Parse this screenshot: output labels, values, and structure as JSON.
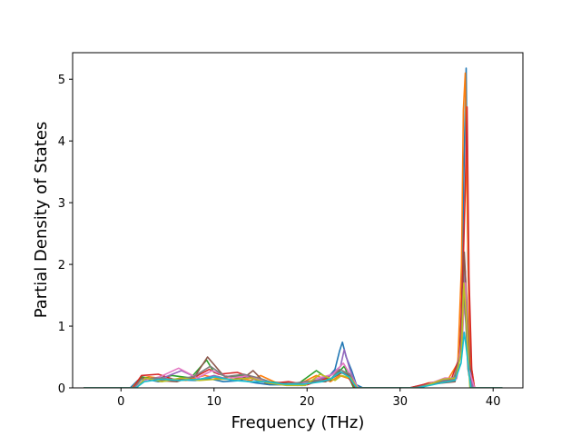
{
  "chart_data": {
    "type": "line",
    "title": "",
    "xlabel": "Frequency (THz)",
    "ylabel": "Partial Density of States",
    "xlim": [
      -5.2,
      43.2
    ],
    "ylim": [
      0,
      5.43
    ],
    "xticks": [
      0,
      10,
      20,
      30,
      40
    ],
    "yticks": [
      0,
      1,
      2,
      3,
      4,
      5
    ],
    "xtick_labels": [
      "0",
      "10",
      "20",
      "30",
      "40"
    ],
    "ytick_labels": [
      "0",
      "1",
      "2",
      "3",
      "4",
      "5"
    ],
    "grid": false,
    "legend": "none",
    "series": [
      {
        "color": "#1f77b4",
        "x": [
          -4,
          1,
          1.8,
          2.5,
          4,
          6,
          8,
          9.5,
          11,
          13,
          14.5,
          16,
          18,
          19.5,
          21,
          22,
          23,
          23.5,
          23.8,
          24.2,
          24.8,
          25.3,
          26,
          31,
          32.5,
          34,
          35.5,
          36.3,
          36.6,
          36.9,
          37.1,
          37.3,
          37.6,
          38,
          41
        ],
        "y": [
          0,
          0,
          0.12,
          0.15,
          0.1,
          0.13,
          0.12,
          0.15,
          0.1,
          0.12,
          0.08,
          0.05,
          0.05,
          0.04,
          0.1,
          0.12,
          0.3,
          0.6,
          0.74,
          0.5,
          0.28,
          0.05,
          0,
          0,
          0.05,
          0.08,
          0.1,
          0.3,
          1.2,
          3.8,
          5.18,
          2.0,
          0.3,
          0,
          0
        ]
      },
      {
        "color": "#ff7f0e",
        "x": [
          -4,
          1.2,
          2,
          3,
          5,
          7,
          9,
          10.5,
          12,
          14,
          15,
          17,
          19,
          21,
          22.5,
          23.5,
          24.5,
          25.5,
          31.5,
          33,
          35,
          36.2,
          36.6,
          36.8,
          37.0,
          37.2,
          37.5,
          38,
          41
        ],
        "y": [
          0,
          0,
          0.15,
          0.18,
          0.14,
          0.12,
          0.2,
          0.15,
          0.18,
          0.12,
          0.2,
          0.06,
          0.05,
          0.2,
          0.1,
          0.2,
          0.15,
          0,
          0,
          0.08,
          0.1,
          0.4,
          2.0,
          4.5,
          5.1,
          3.0,
          0.5,
          0,
          0
        ]
      },
      {
        "color": "#2ca02c",
        "x": [
          -4,
          1.5,
          2.2,
          3.5,
          5.5,
          7.5,
          9.2,
          10,
          11.5,
          13.5,
          15.5,
          17.5,
          19,
          21,
          22.5,
          24,
          25,
          31.8,
          34,
          35.8,
          36.5,
          36.9,
          37.1,
          37.4,
          38,
          41
        ],
        "y": [
          0,
          0,
          0.18,
          0.14,
          0.2,
          0.16,
          0.45,
          0.25,
          0.18,
          0.2,
          0.1,
          0.08,
          0.06,
          0.28,
          0.12,
          0.35,
          0,
          0,
          0.1,
          0.12,
          0.6,
          1.5,
          1.0,
          0.2,
          0,
          0
        ]
      },
      {
        "color": "#d62728",
        "x": [
          -4,
          1.3,
          2.2,
          4,
          6,
          8,
          9.5,
          10.5,
          12.5,
          14.5,
          16,
          18,
          20,
          22,
          23.3,
          24.3,
          25.2,
          31,
          33.5,
          35.5,
          36.4,
          36.8,
          37.0,
          37.2,
          37.4,
          37.7,
          38,
          41
        ],
        "y": [
          0,
          0,
          0.2,
          0.22,
          0.12,
          0.18,
          0.3,
          0.22,
          0.25,
          0.15,
          0.07,
          0.1,
          0.05,
          0.15,
          0.28,
          0.2,
          0,
          0,
          0.09,
          0.14,
          0.5,
          2.1,
          3.2,
          4.55,
          1.8,
          0.3,
          0,
          0
        ]
      },
      {
        "color": "#9467bd",
        "x": [
          -4,
          1.6,
          2.5,
          4.5,
          6.5,
          8.5,
          10,
          12,
          13.5,
          15,
          17,
          19,
          21,
          22.5,
          23.6,
          24.0,
          24.6,
          25.4,
          32,
          34.5,
          36,
          36.7,
          37.0,
          37.3,
          37.8,
          41
        ],
        "y": [
          0,
          0,
          0.14,
          0.16,
          0.28,
          0.14,
          0.2,
          0.12,
          0.18,
          0.1,
          0.06,
          0.04,
          0.12,
          0.2,
          0.35,
          0.62,
          0.3,
          0,
          0,
          0.12,
          0.18,
          0.8,
          1.9,
          0.4,
          0,
          0
        ]
      },
      {
        "color": "#8c564b",
        "x": [
          -4,
          1.4,
          2.3,
          4,
          6,
          8,
          9.3,
          11,
          13,
          14.2,
          15.5,
          18,
          20.5,
          22,
          23.8,
          24.8,
          25.4,
          31.2,
          34,
          35.9,
          36.6,
          36.9,
          37.2,
          37.6,
          41
        ],
        "y": [
          0,
          0,
          0.16,
          0.12,
          0.1,
          0.2,
          0.5,
          0.2,
          0.14,
          0.28,
          0.08,
          0.06,
          0.1,
          0.1,
          0.25,
          0.18,
          0,
          0,
          0.07,
          0.1,
          0.7,
          2.2,
          1.3,
          0,
          0
        ]
      },
      {
        "color": "#e377c2",
        "x": [
          -4,
          1.5,
          2.4,
          4.2,
          6.2,
          8.2,
          9.8,
          11.8,
          13.8,
          15.2,
          17.2,
          19.2,
          21.2,
          22.8,
          23.9,
          24.9,
          25.5,
          32,
          34.8,
          36.1,
          36.7,
          37.0,
          37.4,
          38,
          41
        ],
        "y": [
          0,
          0,
          0.12,
          0.18,
          0.32,
          0.16,
          0.28,
          0.16,
          0.2,
          0.12,
          0.05,
          0.05,
          0.16,
          0.22,
          0.4,
          0.15,
          0,
          0,
          0.16,
          0.15,
          0.9,
          1.7,
          0.3,
          0,
          0
        ]
      },
      {
        "color": "#7f7f7f",
        "x": [
          -4,
          1.4,
          2.2,
          3.8,
          5.8,
          7.8,
          9.6,
          11.2,
          13.2,
          14.8,
          16.8,
          18.8,
          20.8,
          22.4,
          23.5,
          24.6,
          25.3,
          31.6,
          34.2,
          35.7,
          36.5,
          36.8,
          37.05,
          37.3,
          37.7,
          41
        ],
        "y": [
          0,
          0,
          0.14,
          0.16,
          0.14,
          0.18,
          0.35,
          0.18,
          0.22,
          0.16,
          0.06,
          0.08,
          0.12,
          0.12,
          0.3,
          0.22,
          0,
          0,
          0.1,
          0.13,
          0.5,
          1.6,
          1.1,
          0.3,
          0,
          0
        ]
      },
      {
        "color": "#bcbd22",
        "x": [
          -4,
          1.7,
          2.6,
          4.4,
          6.4,
          8.4,
          10.2,
          12.2,
          14,
          15.8,
          17.8,
          19.8,
          21.4,
          23,
          23.7,
          24.7,
          25.4,
          32.2,
          34.6,
          36,
          36.6,
          36.85,
          37.1,
          37.5,
          41
        ],
        "y": [
          0,
          0,
          0.16,
          0.1,
          0.16,
          0.12,
          0.14,
          0.14,
          0.16,
          0.08,
          0.04,
          0.04,
          0.22,
          0.12,
          0.2,
          0.16,
          0,
          0,
          0.14,
          0.16,
          0.6,
          1.7,
          1.2,
          0,
          0
        ]
      },
      {
        "color": "#17becf",
        "x": [
          -4,
          1.6,
          2.5,
          4.3,
          6.3,
          8.3,
          10.1,
          12.1,
          13.9,
          15.6,
          17.6,
          19.6,
          21.6,
          22.6,
          23.6,
          24.5,
          25.3,
          31.9,
          34.4,
          35.9,
          36.55,
          36.9,
          37.15,
          37.6,
          41
        ],
        "y": [
          0,
          0,
          0.1,
          0.14,
          0.12,
          0.14,
          0.18,
          0.12,
          0.1,
          0.1,
          0.06,
          0.06,
          0.1,
          0.15,
          0.26,
          0.18,
          0,
          0,
          0.08,
          0.12,
          0.4,
          0.9,
          0.6,
          0,
          0
        ]
      }
    ]
  }
}
